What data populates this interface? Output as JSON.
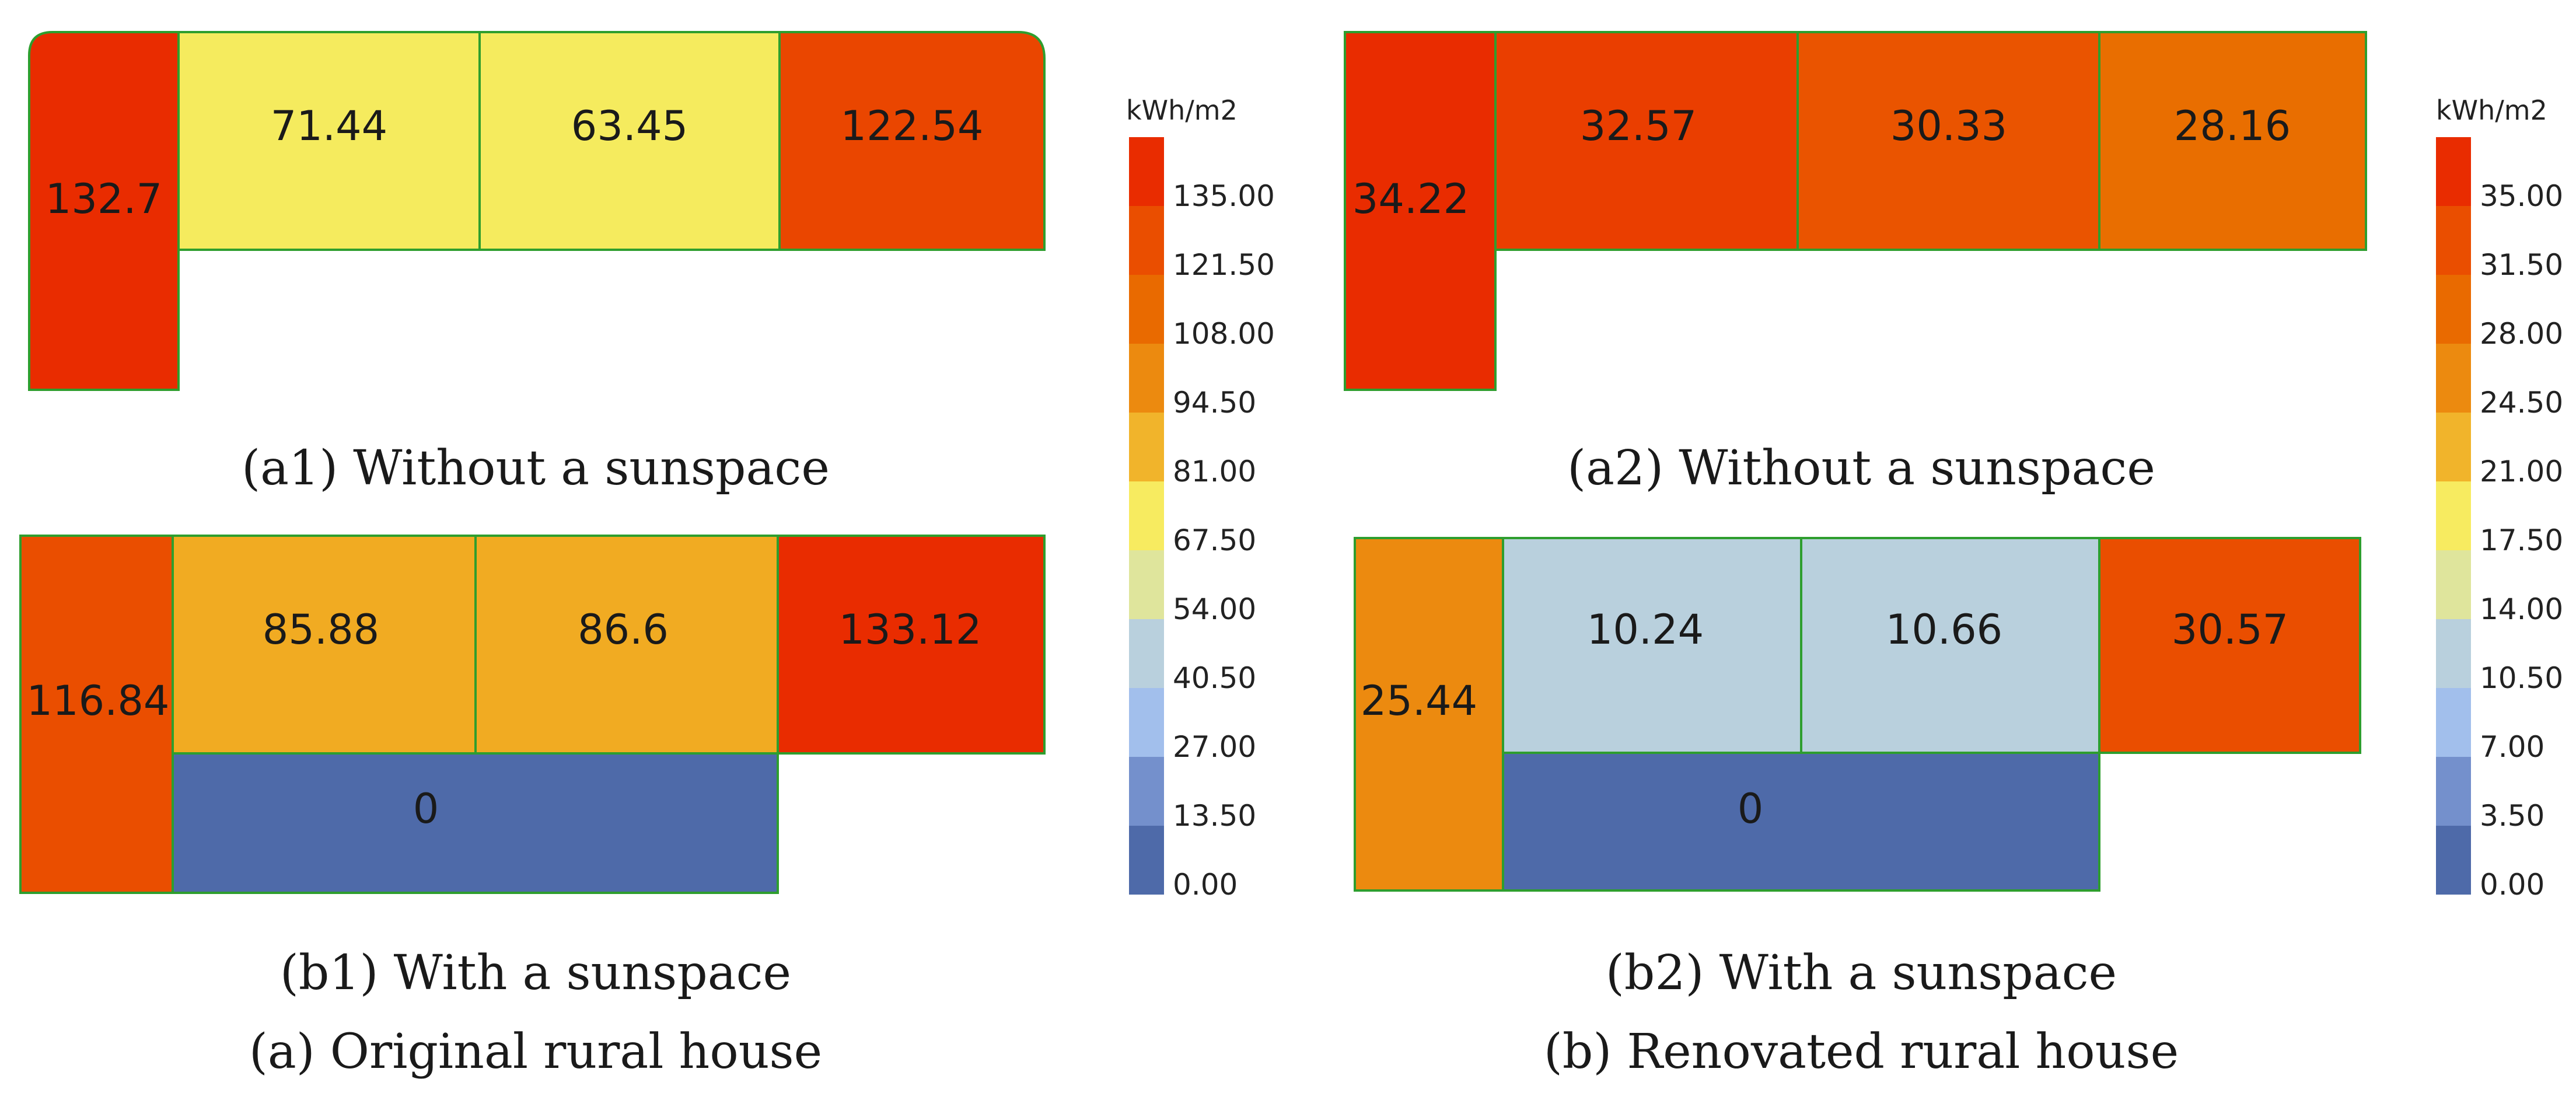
{
  "legend_left": {
    "unit": "kWh/m2",
    "ticks": [
      "135.00",
      "121.50",
      "108.00",
      "94.50",
      "81.00",
      "67.50",
      "54.00",
      "40.50",
      "27.00",
      "13.50",
      "0.00"
    ],
    "colors": [
      "#e92c00",
      "#ea4e00",
      "#e96a00",
      "#ec8a0f",
      "#f1b42b",
      "#f7eb60",
      "#dfe59c",
      "#b9d0dd",
      "#a2bfec",
      "#7490cc",
      "#4e6aa9"
    ]
  },
  "legend_right": {
    "unit": "kWh/m2",
    "ticks": [
      "35.00",
      "31.50",
      "28.00",
      "24.50",
      "21.00",
      "17.50",
      "14.00",
      "10.50",
      "7.00",
      "3.50",
      "0.00"
    ],
    "colors": [
      "#e92c00",
      "#ea4e00",
      "#e96a00",
      "#ec8a0f",
      "#f1b42b",
      "#f7eb60",
      "#dfe59c",
      "#b9d0dd",
      "#a2bfec",
      "#7490cc",
      "#4e6aa9"
    ]
  },
  "panel_a1": {
    "caption": "(a1) Without a sunspace",
    "zones": [
      {
        "id": "west",
        "value": "132.7",
        "color": "#e92c00"
      },
      {
        "id": "room-1",
        "value": "71.44",
        "color": "#f5eb5e"
      },
      {
        "id": "room-2",
        "value": "63.45",
        "color": "#f5eb5e"
      },
      {
        "id": "east",
        "value": "122.54",
        "color": "#ea4600"
      }
    ]
  },
  "panel_a2": {
    "caption": "(a2) Without a sunspace",
    "zones": [
      {
        "id": "west",
        "value": "34.22",
        "color": "#e92c00"
      },
      {
        "id": "room-1",
        "value": "32.57",
        "color": "#ea3e00"
      },
      {
        "id": "room-2",
        "value": "30.33",
        "color": "#ea5400"
      },
      {
        "id": "east",
        "value": "28.16",
        "color": "#e96e00"
      }
    ]
  },
  "panel_b1": {
    "caption": "(b1) With a sunspace",
    "zones": [
      {
        "id": "west",
        "value": "116.84",
        "color": "#ea4e00"
      },
      {
        "id": "room-1",
        "value": "85.88",
        "color": "#f1ab22"
      },
      {
        "id": "room-2",
        "value": "86.6",
        "color": "#f1ab22"
      },
      {
        "id": "east",
        "value": "133.12",
        "color": "#e92c00"
      },
      {
        "id": "sunspace",
        "value": "0",
        "color": "#4e6aa9"
      }
    ]
  },
  "panel_b2": {
    "caption": "(b2) With a sunspace",
    "zones": [
      {
        "id": "west",
        "value": "25.44",
        "color": "#ec8a0f"
      },
      {
        "id": "room-1",
        "value": "10.24",
        "color": "#b9d0dd"
      },
      {
        "id": "room-2",
        "value": "10.66",
        "color": "#b9d0dd"
      },
      {
        "id": "east",
        "value": "30.57",
        "color": "#ea4e00"
      },
      {
        "id": "sunspace",
        "value": "0",
        "color": "#4e6aa9"
      }
    ]
  },
  "captions": {
    "group_a": "(a) Original rural house",
    "group_b": "(b) Renovated rural house"
  }
}
